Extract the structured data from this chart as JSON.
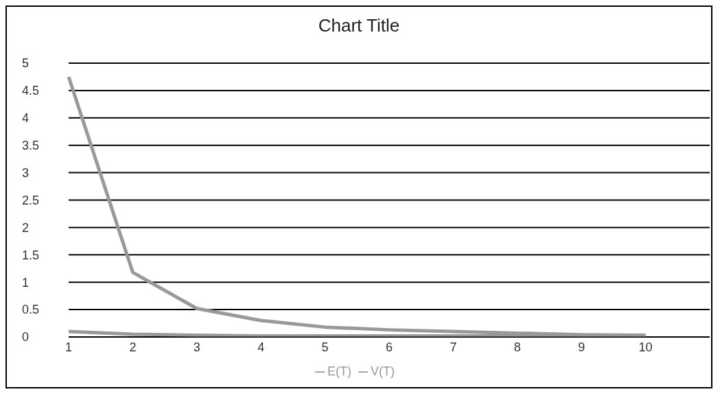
{
  "chart_data": {
    "type": "line",
    "title": "Chart Title",
    "categories": [
      "1",
      "2",
      "3",
      "4",
      "5",
      "6",
      "7",
      "8",
      "9",
      "10",
      null
    ],
    "series": [
      {
        "name": "E(T)",
        "color": "#999999",
        "values": [
          0.1,
          0.05,
          0.03,
          0.02,
          0.02,
          0.02,
          0.02,
          0.02,
          0.02,
          0.02,
          null
        ]
      },
      {
        "name": "V(T)",
        "color": "#999999",
        "values": [
          4.75,
          1.18,
          0.52,
          0.3,
          0.18,
          0.13,
          0.1,
          0.07,
          0.04,
          0.03,
          null
        ]
      }
    ],
    "ylim": [
      0,
      5
    ],
    "yticks": [
      0,
      0.5,
      1,
      1.5,
      2,
      2.5,
      3,
      3.5,
      4,
      4.5,
      5
    ],
    "grid": "y",
    "legend": "bottom",
    "marker": "none",
    "line_style": "solid"
  }
}
